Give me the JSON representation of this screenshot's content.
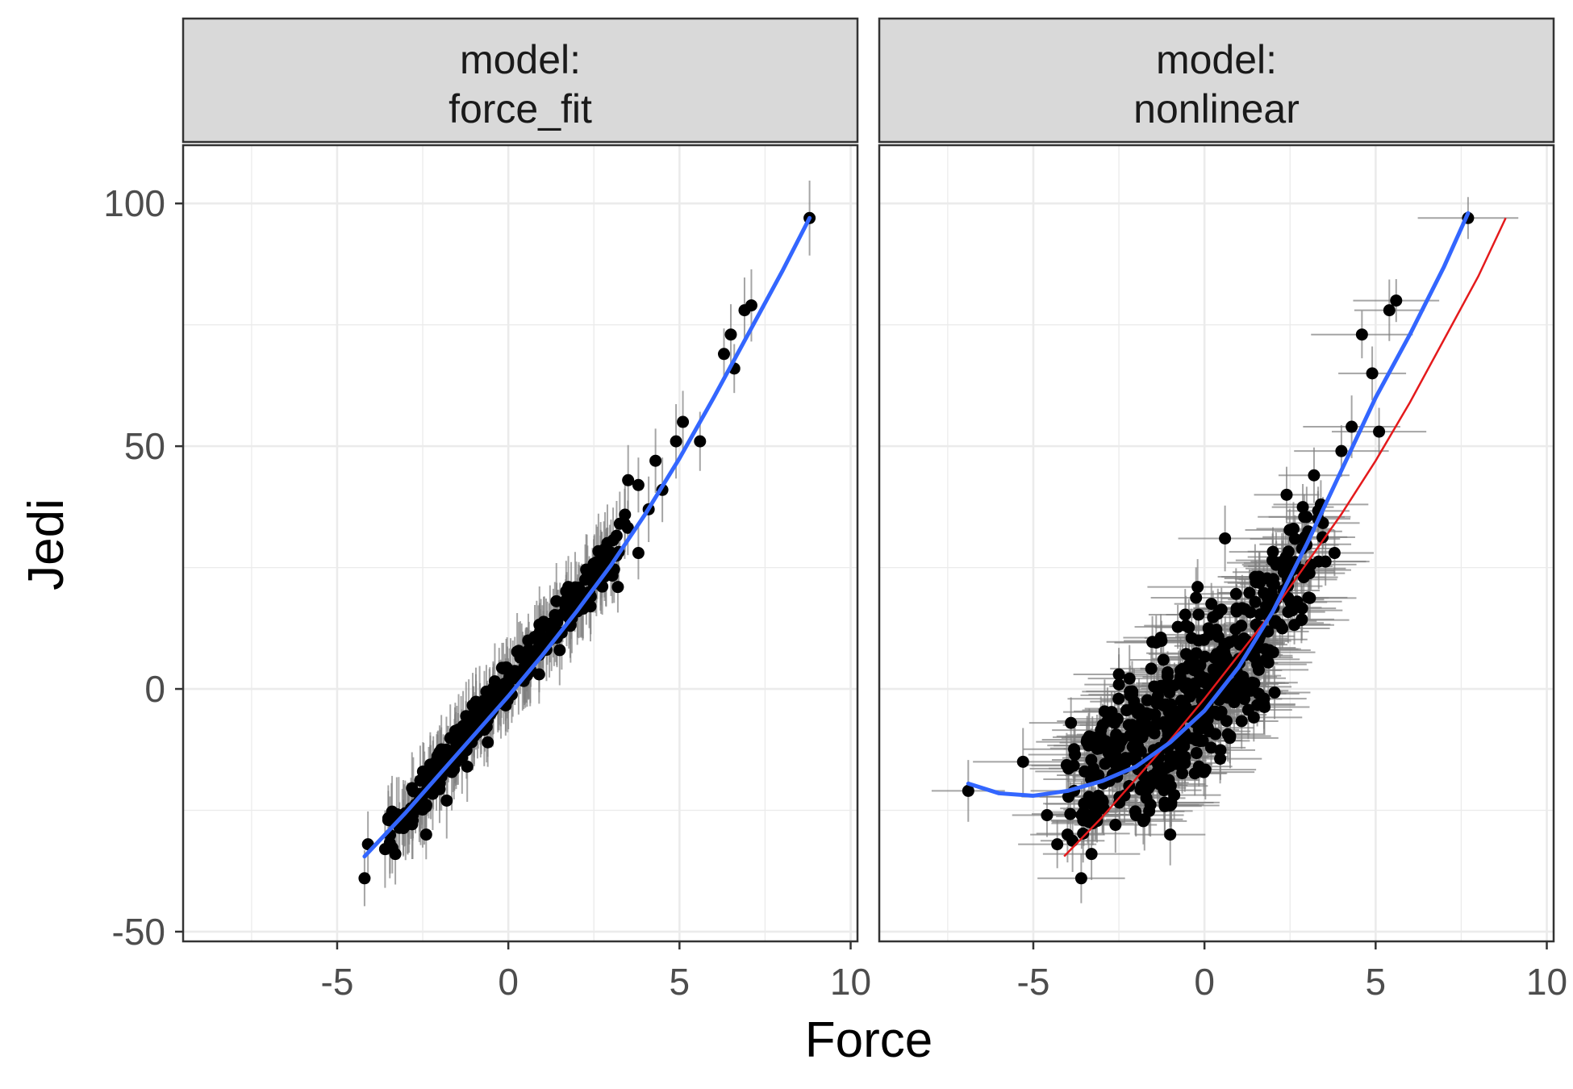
{
  "chart_data": {
    "type": "scatter",
    "xlabel": "Force",
    "ylabel": "Jedi",
    "xlim": [
      -9.5,
      10.2
    ],
    "ylim": [
      -52,
      112
    ],
    "x_ticks": [
      -5,
      0,
      5,
      10
    ],
    "x_tick_labels": [
      "-5",
      "0",
      "5",
      "10"
    ],
    "y_ticks": [
      -50,
      0,
      50,
      100
    ],
    "y_tick_labels": [
      "-50",
      "0",
      "50",
      "100"
    ],
    "grid": true,
    "colors": {
      "points": "#000000",
      "error_bars": "#7f7f7f",
      "smooth": "#3366ff",
      "reference": "#e41a1c",
      "strip_bg": "#d9d9d9",
      "grid": "#ebebeb"
    },
    "panels": [
      {
        "strip_line1": "model:",
        "strip_line2": "force_fit",
        "points": [
          [
            -4.2,
            -39
          ],
          [
            -4.1,
            -32
          ],
          [
            -3.6,
            -33
          ],
          [
            -3.3,
            -34
          ],
          [
            -3.2,
            -26
          ],
          [
            -2.9,
            -27
          ],
          [
            -2.6,
            -24
          ],
          [
            -2.4,
            -30
          ],
          [
            -2.1,
            -20
          ],
          [
            -1.8,
            -23
          ],
          [
            -1.5,
            -14
          ],
          [
            -1.2,
            -16
          ],
          [
            -0.9,
            -9
          ],
          [
            -0.6,
            -11
          ],
          [
            -0.3,
            -3
          ],
          [
            0.0,
            -1
          ],
          [
            0.3,
            2
          ],
          [
            0.6,
            5
          ],
          [
            0.9,
            3
          ],
          [
            1.2,
            10
          ],
          [
            1.5,
            8
          ],
          [
            1.8,
            15
          ],
          [
            2.1,
            18
          ],
          [
            2.4,
            17
          ],
          [
            2.7,
            25
          ],
          [
            3.0,
            27
          ],
          [
            3.2,
            21
          ],
          [
            3.4,
            34
          ],
          [
            3.5,
            43
          ],
          [
            3.8,
            42
          ],
          [
            3.8,
            28
          ],
          [
            4.1,
            37
          ],
          [
            4.3,
            47
          ],
          [
            4.5,
            41
          ],
          [
            4.9,
            51
          ],
          [
            5.1,
            55
          ],
          [
            5.6,
            51
          ],
          [
            6.3,
            69
          ],
          [
            6.5,
            73
          ],
          [
            6.6,
            66
          ],
          [
            6.9,
            78
          ],
          [
            7.1,
            79
          ],
          [
            8.8,
            97
          ]
        ],
        "cloud_points": [
          [
            -3.0,
            -26
          ],
          [
            -2.5,
            -21
          ],
          [
            -2.0,
            -17
          ],
          [
            -1.5,
            -12
          ],
          [
            -1.0,
            -7
          ],
          [
            -0.5,
            -3
          ],
          [
            0.0,
            2
          ],
          [
            0.5,
            6
          ],
          [
            1.0,
            10
          ],
          [
            1.5,
            14
          ],
          [
            2.0,
            19
          ],
          [
            2.5,
            23
          ],
          [
            3.0,
            29
          ]
        ],
        "smooth_line": {
          "x": [
            -4.2,
            -3,
            -2,
            -1,
            0,
            1,
            2,
            3,
            4,
            5,
            6,
            7,
            8,
            8.8
          ],
          "y": [
            -34.5,
            -25.5,
            -17.5,
            -9.5,
            -1.5,
            7.0,
            16.0,
            25.5,
            36.0,
            47.5,
            60.0,
            73.0,
            86.0,
            97.0
          ]
        }
      },
      {
        "strip_line1": "model:",
        "strip_line2": "nonlinear",
        "points": [
          [
            -6.9,
            -21
          ],
          [
            -5.3,
            -15
          ],
          [
            -4.6,
            -26
          ],
          [
            -4.3,
            -32
          ],
          [
            -4.0,
            -30
          ],
          [
            -3.9,
            -7
          ],
          [
            -3.6,
            -39
          ],
          [
            -3.5,
            -17
          ],
          [
            -3.3,
            -34
          ],
          [
            -3.1,
            -22
          ],
          [
            -2.8,
            -12
          ],
          [
            -2.6,
            -28
          ],
          [
            -2.5,
            3
          ],
          [
            -2.2,
            -20
          ],
          [
            -2.0,
            -26
          ],
          [
            -1.7,
            -5
          ],
          [
            -1.4,
            -13
          ],
          [
            -1.2,
            6
          ],
          [
            -1.0,
            -30
          ],
          [
            -0.8,
            -8
          ],
          [
            -0.5,
            0
          ],
          [
            -0.2,
            21
          ],
          [
            0.1,
            -8
          ],
          [
            0.3,
            2
          ],
          [
            0.6,
            31
          ],
          [
            0.9,
            10
          ],
          [
            1.2,
            7
          ],
          [
            1.5,
            22
          ],
          [
            1.8,
            17
          ],
          [
            2.1,
            26
          ],
          [
            2.4,
            40
          ],
          [
            2.6,
            33
          ],
          [
            2.9,
            23
          ],
          [
            3.2,
            44
          ],
          [
            3.4,
            38
          ],
          [
            3.8,
            28
          ],
          [
            4.0,
            49
          ],
          [
            4.3,
            54
          ],
          [
            4.6,
            73
          ],
          [
            4.9,
            65
          ],
          [
            5.1,
            53
          ],
          [
            5.4,
            78
          ],
          [
            5.6,
            80
          ],
          [
            7.7,
            97
          ]
        ],
        "cloud_points": [
          [
            -3.5,
            -20
          ],
          [
            -3.0,
            -17
          ],
          [
            -2.5,
            -15
          ],
          [
            -2.0,
            -13
          ],
          [
            -1.5,
            -10
          ],
          [
            -1.0,
            -7
          ],
          [
            -0.5,
            -4
          ],
          [
            0.0,
            -1
          ],
          [
            0.5,
            3
          ],
          [
            1.0,
            7
          ],
          [
            1.5,
            12
          ],
          [
            2.0,
            16
          ],
          [
            2.5,
            22
          ],
          [
            3.0,
            28
          ],
          [
            -1.5,
            -18
          ],
          [
            -0.5,
            -12
          ],
          [
            0.5,
            -5
          ],
          [
            1.5,
            4
          ],
          [
            -2.5,
            -8
          ],
          [
            -1.0,
            2
          ],
          [
            0.0,
            10
          ]
        ],
        "smooth_line": {
          "x": [
            -6.9,
            -6,
            -5,
            -4,
            -3,
            -2,
            -1,
            0,
            1,
            2,
            3,
            4,
            5,
            6,
            7,
            7.7
          ],
          "y": [
            -19.5,
            -21.5,
            -22.0,
            -21.0,
            -19.0,
            -16.0,
            -11.0,
            -4.5,
            4.5,
            16.0,
            30.0,
            45.0,
            60.0,
            73.0,
            87.0,
            98.0
          ]
        },
        "reference_line": {
          "x": [
            -4.1,
            -3,
            -2,
            -1,
            0,
            1,
            2,
            3,
            4,
            5,
            6,
            7,
            8,
            8.8
          ],
          "y": [
            -34.5,
            -26.5,
            -18.5,
            -10.5,
            -2.0,
            7.0,
            16.0,
            26.0,
            36.0,
            47.0,
            59.0,
            72.0,
            85.0,
            97.0
          ]
        }
      }
    ]
  }
}
